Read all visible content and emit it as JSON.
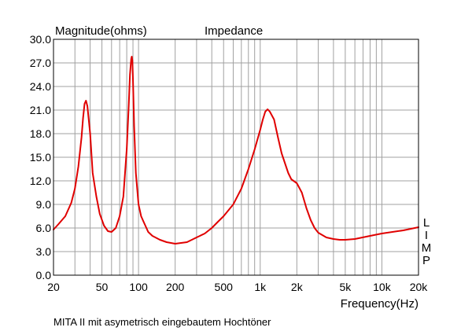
{
  "chart_data": {
    "type": "line",
    "title": "Impedance",
    "ylabel": "Magnitude(ohms)",
    "xlabel": "Frequency(Hz)",
    "caption": "MITA II mit asymetrisch eingebautem Hochtöner",
    "side_label": [
      "L",
      "I",
      "M",
      "P"
    ],
    "x_scale": "log",
    "xlim": [
      20,
      20000
    ],
    "ylim": [
      0,
      30
    ],
    "grid": true,
    "line_color": "#e00000",
    "grid_color": "#a0a0a0",
    "y_ticks": [
      {
        "value": 0,
        "label": "0.0"
      },
      {
        "value": 3,
        "label": "3.0"
      },
      {
        "value": 6,
        "label": "6.0"
      },
      {
        "value": 9,
        "label": "9.0"
      },
      {
        "value": 12,
        "label": "12.0"
      },
      {
        "value": 15,
        "label": "15.0"
      },
      {
        "value": 18,
        "label": "18.0"
      },
      {
        "value": 21,
        "label": "21.0"
      },
      {
        "value": 24,
        "label": "24.0"
      },
      {
        "value": 27,
        "label": "27.0"
      },
      {
        "value": 30,
        "label": "30.0"
      }
    ],
    "x_ticks": [
      {
        "value": 20,
        "label": "20"
      },
      {
        "value": 50,
        "label": "50"
      },
      {
        "value": 100,
        "label": "100"
      },
      {
        "value": 200,
        "label": "200"
      },
      {
        "value": 500,
        "label": "500"
      },
      {
        "value": 1000,
        "label": "1k"
      },
      {
        "value": 2000,
        "label": "2k"
      },
      {
        "value": 5000,
        "label": "5k"
      },
      {
        "value": 10000,
        "label": "10k"
      },
      {
        "value": 20000,
        "label": "20k"
      }
    ],
    "x_grid": [
      30,
      40,
      50,
      60,
      70,
      80,
      90,
      100,
      200,
      300,
      400,
      500,
      600,
      700,
      800,
      900,
      1000,
      2000,
      3000,
      4000,
      5000,
      6000,
      7000,
      8000,
      9000,
      10000
    ],
    "series": [
      {
        "x": [
          20,
          22,
          25,
          28,
          30,
          32,
          34,
          35,
          36,
          37,
          38,
          40,
          42,
          45,
          48,
          52,
          56,
          60,
          65,
          70,
          75,
          80,
          83,
          85,
          87,
          88,
          89,
          90,
          92,
          95,
          100,
          105,
          110,
          120,
          130,
          150,
          170,
          200,
          250,
          300,
          350,
          400,
          450,
          500,
          600,
          700,
          800,
          900,
          1000,
          1050,
          1100,
          1150,
          1200,
          1300,
          1400,
          1500,
          1700,
          1800,
          2000,
          2200,
          2400,
          2600,
          2800,
          3000,
          3500,
          4000,
          4500,
          5000,
          6000,
          8000,
          10000,
          15000,
          20000
        ],
        "y": [
          5.8,
          6.5,
          7.5,
          9.2,
          11.0,
          13.8,
          17.5,
          20.0,
          21.8,
          22.2,
          21.5,
          18.0,
          13.0,
          10.0,
          7.8,
          6.3,
          5.6,
          5.5,
          6.0,
          7.5,
          10.0,
          16.0,
          21.5,
          25.5,
          27.5,
          27.8,
          27.3,
          25.0,
          19.0,
          13.0,
          9.0,
          7.5,
          6.8,
          5.5,
          5.0,
          4.5,
          4.2,
          4.0,
          4.2,
          4.8,
          5.3,
          6.0,
          6.8,
          7.5,
          9.0,
          11.0,
          13.5,
          16.0,
          18.5,
          19.8,
          20.8,
          21.1,
          20.8,
          19.8,
          17.5,
          15.5,
          13.0,
          12.2,
          11.7,
          10.5,
          8.5,
          7.0,
          6.0,
          5.4,
          4.8,
          4.6,
          4.5,
          4.5,
          4.6,
          5.0,
          5.3,
          5.7,
          6.1
        ]
      }
    ]
  }
}
